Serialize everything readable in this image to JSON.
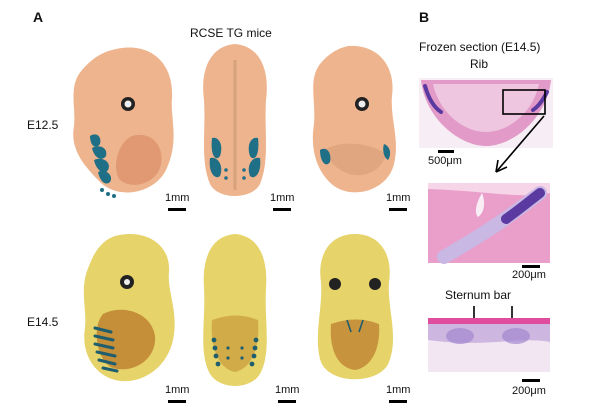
{
  "panel_a": {
    "letter": "A",
    "title": "RCSE TG mice",
    "rows": [
      {
        "stage": "E12.5",
        "scales": [
          "1mm",
          "1mm",
          "1mm"
        ]
      },
      {
        "stage": "E14.5",
        "scales": [
          "1mm",
          "1mm",
          "1mm"
        ]
      }
    ]
  },
  "panel_b": {
    "letter": "B",
    "title": "Frozen section (E14.5)",
    "subtitle": "Rib",
    "scale_1": "500μm",
    "scale_2": "200μm",
    "sternum_label": "Sternum bar",
    "scale_3": "200μm"
  },
  "colors": {
    "embryo_e12": "#eeb48e",
    "embryo_e14": "#e6d36a",
    "xgal_blue": "#1f6f86",
    "he_pink": "#e58bc0",
    "cartilage_purple": "#5a3aa0"
  }
}
